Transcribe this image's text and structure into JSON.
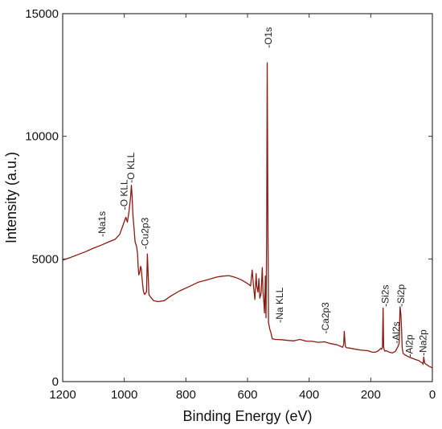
{
  "chart_data": {
    "type": "line",
    "xlabel": "Binding Energy (eV)",
    "ylabel": "Intensity (a.u.)",
    "xlim": [
      1200,
      0
    ],
    "ylim": [
      0,
      15000
    ],
    "x_reversed": true,
    "x_ticks": [
      {
        "value": 1200,
        "label": "1200"
      },
      {
        "value": 1000,
        "label": "1000"
      },
      {
        "value": 800,
        "label": "800"
      },
      {
        "value": 600,
        "label": "600"
      },
      {
        "value": 400,
        "label": "400"
      },
      {
        "value": 200,
        "label": "200"
      },
      {
        "value": 0,
        "label": "0"
      }
    ],
    "y_ticks": [
      {
        "value": 0,
        "label": "0"
      },
      {
        "value": 5000,
        "label": "5000"
      },
      {
        "value": 10000,
        "label": "10000"
      },
      {
        "value": 15000,
        "label": "15000"
      }
    ],
    "grid": false,
    "legend": "none",
    "series_color": "#8b1a10",
    "series": [
      {
        "x": [
          1200,
          1175,
          1150,
          1125,
          1100,
          1075,
          1050,
          1030,
          1015,
          1005,
          995,
          990,
          985,
          980,
          977,
          975,
          972,
          968,
          965,
          960,
          957,
          955,
          953,
          950,
          947,
          945,
          943,
          940,
          938,
          936,
          934,
          932,
          928,
          925,
          920,
          915,
          905,
          890,
          870,
          850,
          820,
          790,
          760,
          730,
          700,
          680,
          660,
          640,
          620,
          600,
          590,
          585,
          580,
          576,
          572,
          570,
          566,
          563,
          560,
          556,
          552,
          550,
          547,
          545,
          542,
          540,
          538,
          536,
          534,
          532,
          530,
          528,
          524,
          520,
          510,
          490,
          470,
          450,
          430,
          410,
          390,
          370,
          350,
          330,
          310,
          300,
          292,
          288,
          286,
          284,
          282,
          278,
          270,
          250,
          230,
          210,
          195,
          185,
          175,
          168,
          165,
          162,
          160,
          158,
          156,
          154,
          150,
          145,
          140,
          130,
          120,
          112,
          108,
          105,
          102,
          100,
          98,
          95,
          90,
          85,
          75,
          65,
          55,
          45,
          40,
          35,
          32,
          30,
          28,
          25,
          20,
          10,
          0
        ],
        "y": [
          4950,
          5060,
          5180,
          5300,
          5440,
          5560,
          5700,
          5800,
          6000,
          6350,
          6700,
          6500,
          6900,
          7450,
          8000,
          7600,
          6800,
          6200,
          5700,
          5500,
          5200,
          4700,
          4350,
          4450,
          4700,
          4600,
          4300,
          3900,
          3700,
          3600,
          3550,
          3600,
          3650,
          5200,
          3550,
          3450,
          3300,
          3260,
          3300,
          3480,
          3700,
          3870,
          4050,
          4150,
          4260,
          4300,
          4320,
          4250,
          4150,
          4000,
          3900,
          4550,
          3800,
          3350,
          4400,
          3900,
          3650,
          4200,
          3400,
          3600,
          4650,
          3700,
          3250,
          2800,
          4300,
          2600,
          5800,
          13000,
          7200,
          2400,
          2300,
          2150,
          2000,
          1750,
          1720,
          1710,
          1680,
          1660,
          1720,
          1650,
          1640,
          1600,
          1620,
          1550,
          1500,
          1450,
          1400,
          1500,
          2050,
          1700,
          1420,
          1380,
          1370,
          1320,
          1280,
          1260,
          1200,
          1200,
          1260,
          1350,
          1320,
          1400,
          3000,
          1400,
          1280,
          1240,
          1260,
          1230,
          1200,
          1170,
          1230,
          1420,
          1550,
          3050,
          2700,
          2100,
          1400,
          1150,
          1100,
          1060,
          1000,
          950,
          900,
          860,
          820,
          780,
          760,
          700,
          1000,
          760,
          700,
          620,
          560
        ]
      }
    ],
    "annotations": [
      {
        "text": "Na1s",
        "x": 1072,
        "y": 5900
      },
      {
        "text": "O KLL",
        "x": 1000,
        "y": 7000
      },
      {
        "text": "O KLL",
        "x": 978,
        "y": 8100
      },
      {
        "text": "Cu2p3",
        "x": 933,
        "y": 5400
      },
      {
        "text": "O1s",
        "x": 532,
        "y": 13600
      },
      {
        "text": "Na KLL",
        "x": 496,
        "y": 2400
      },
      {
        "text": "Ca2p3",
        "x": 347,
        "y": 1950
      },
      {
        "text": "Si2s",
        "x": 153,
        "y": 3050
      },
      {
        "text": "Si2p",
        "x": 102,
        "y": 3050
      },
      {
        "text": "Al2s",
        "x": 118,
        "y": 1550
      },
      {
        "text": "Al2p",
        "x": 74,
        "y": 1000
      },
      {
        "text": "Na2p",
        "x": 30,
        "y": 1050
      }
    ]
  }
}
